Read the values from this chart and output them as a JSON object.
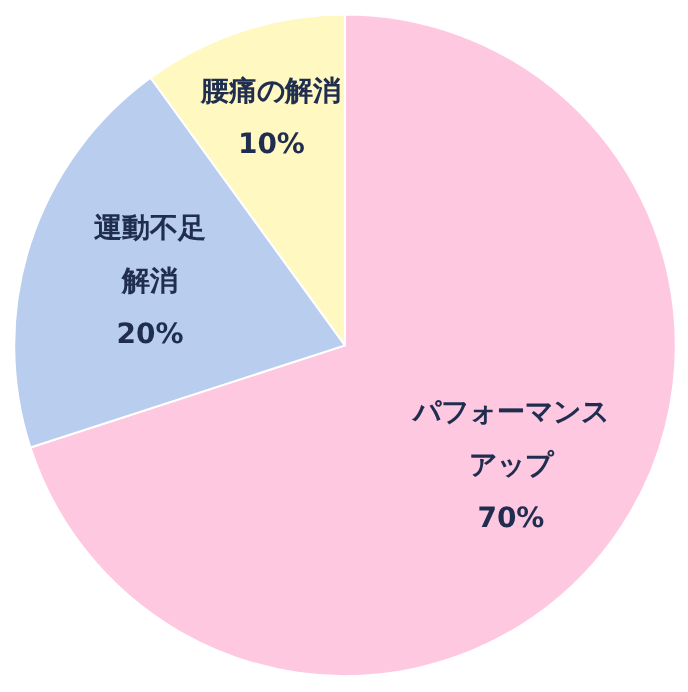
{
  "chart_data": {
    "type": "pie",
    "categories": [
      "パフォーマンスアップ",
      "運動不足解消",
      "腰痛の解消"
    ],
    "values": [
      70,
      20,
      10
    ],
    "value_labels": [
      "70%",
      "20%",
      "10%"
    ],
    "colors": [
      "#ffc8e1",
      "#b9cdef",
      "#fff8c0"
    ]
  }
}
